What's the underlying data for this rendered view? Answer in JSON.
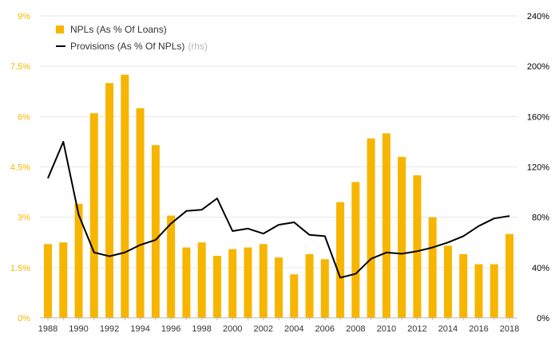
{
  "colors": {
    "npl": "#F7B500",
    "provisions": "#000000",
    "left_axis": "#F7B500",
    "right_axis": "#000000",
    "grid": "#e6e6e6"
  },
  "legend": {
    "npl_label": "NPLs (As % Of Loans)",
    "prov_label": "Provisions (As % Of NPLs)",
    "prov_note": "(rhs)"
  },
  "chart_data": {
    "type": "bar",
    "x": [
      1988,
      1989,
      1990,
      1991,
      1992,
      1993,
      1994,
      1995,
      1996,
      1997,
      1998,
      1999,
      2000,
      2001,
      2002,
      2003,
      2004,
      2005,
      2006,
      2007,
      2008,
      2009,
      2010,
      2011,
      2012,
      2013,
      2014,
      2015,
      2016,
      2017,
      2018
    ],
    "x_tick_labels": [
      "1988",
      "1990",
      "1992",
      "1994",
      "1996",
      "1998",
      "2000",
      "2002",
      "2004",
      "2006",
      "2008",
      "2010",
      "2012",
      "2014",
      "2016",
      "2018"
    ],
    "series": [
      {
        "name": "NPLs (As % Of Loans)",
        "type": "bar",
        "axis": "left",
        "values": [
          2.2,
          2.25,
          3.4,
          6.1,
          7.0,
          7.25,
          6.25,
          5.15,
          3.05,
          2.1,
          2.25,
          1.85,
          2.05,
          2.1,
          2.2,
          1.8,
          1.3,
          1.9,
          1.75,
          3.45,
          4.05,
          5.35,
          5.5,
          4.8,
          4.25,
          3.0,
          2.15,
          1.9,
          1.6,
          1.6,
          2.5
        ]
      },
      {
        "name": "Provisions (As % Of NPLs)",
        "type": "line",
        "axis": "right",
        "values": [
          111,
          140,
          82,
          52,
          49,
          52,
          58,
          62,
          75,
          85,
          86,
          95,
          69,
          71,
          67,
          74,
          76,
          66,
          65,
          32,
          35,
          47,
          52,
          51,
          53,
          56,
          60,
          65,
          73,
          79,
          81
        ]
      }
    ],
    "left_axis": {
      "ticks": [
        0,
        1.5,
        3,
        4.5,
        6,
        7.5,
        9
      ],
      "tick_labels": [
        "0%",
        "1.5%",
        "3%",
        "4.5%",
        "6%",
        "7.5%",
        "9%"
      ],
      "range": [
        0,
        9
      ]
    },
    "right_axis": {
      "ticks": [
        0,
        40,
        80,
        120,
        160,
        200,
        240
      ],
      "tick_labels": [
        "0%",
        "40%",
        "80%",
        "120%",
        "160%",
        "200%",
        "240%"
      ],
      "range": [
        0,
        240
      ]
    },
    "grid": true,
    "legend_position": "top-left"
  }
}
